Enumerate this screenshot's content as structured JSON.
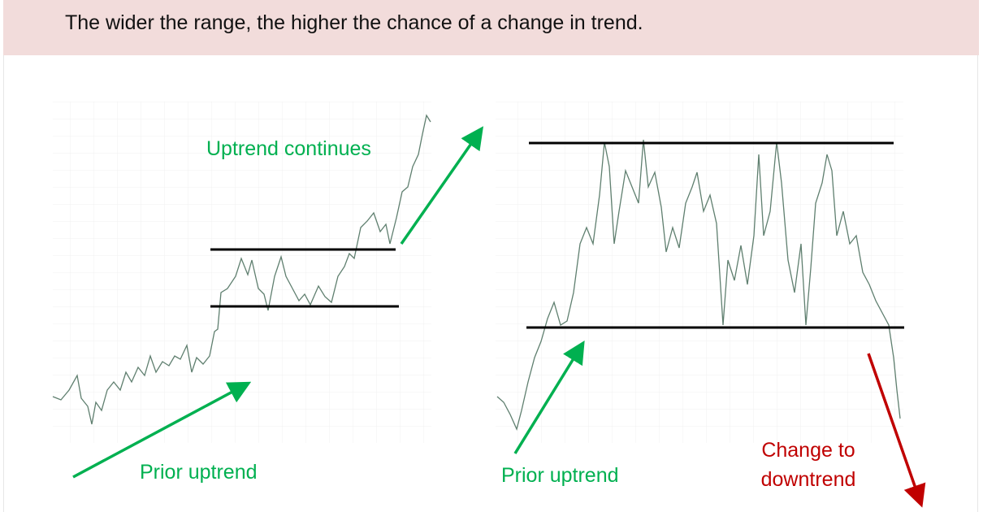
{
  "header": {
    "title": "The wider the range, the higher the chance of a change in trend."
  },
  "left_panel": {
    "top_label": "Uptrend continues",
    "bottom_label": "Prior uptrend"
  },
  "right_panel": {
    "bottom_label": "Prior uptrend",
    "outcome_label": [
      "Change to",
      "downtrend"
    ]
  }
}
